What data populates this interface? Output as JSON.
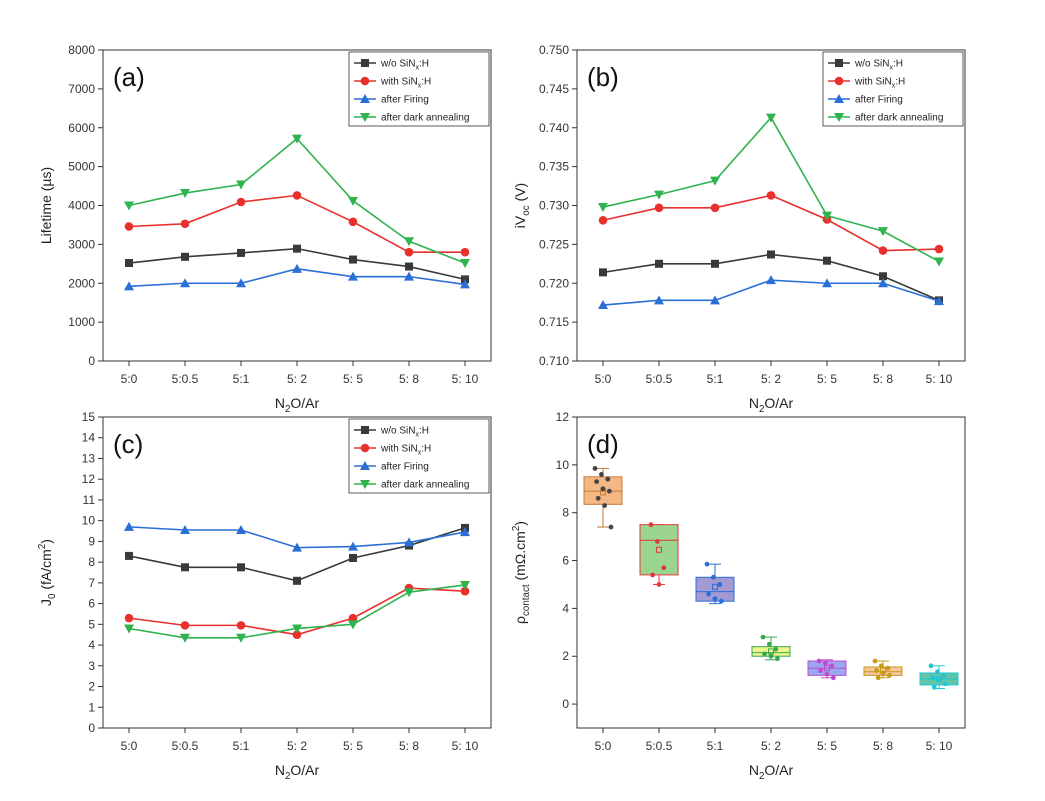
{
  "legend_items": [
    {
      "text": "w/o SiN",
      "sub": "x",
      "tail": ":H",
      "color": "#3a3a3a",
      "marker": "square"
    },
    {
      "text": "with SiN",
      "sub": "x",
      "tail": ":H",
      "color": "#e8302c",
      "marker": "circle"
    },
    {
      "text": "after Firing",
      "sub": "",
      "tail": "",
      "color": "#2a6fd6",
      "marker": "triangle-up"
    },
    {
      "text": "after dark annealing",
      "sub": "",
      "tail": "",
      "color": "#2fb34e",
      "marker": "triangle-down"
    }
  ],
  "chart_data": [
    {
      "panel_label": "(a)",
      "type": "line",
      "categories": [
        "5:0",
        "5:0.5",
        "5:1",
        "5: 2",
        "5: 5",
        "5: 8",
        "5: 10"
      ],
      "xlabel": {
        "main": "N",
        "sub": "2",
        "tail": "O/Ar"
      },
      "ylabel": {
        "main": "Lifetime (µs)",
        "sub": "",
        "tail": "",
        "sup": "",
        "end": ""
      },
      "ylim": [
        0,
        8000
      ],
      "yticks": [
        0,
        1000,
        2000,
        3000,
        4000,
        5000,
        6000,
        7000,
        8000
      ],
      "ytick_labels": [
        "0",
        "1000",
        "2000",
        "3000",
        "4000",
        "5000",
        "6000",
        "7000",
        "8000"
      ],
      "series": [
        {
          "values": [
            2520,
            2680,
            2780,
            2890,
            2610,
            2430,
            2100
          ],
          "color": "#3a3a3a",
          "marker": "square"
        },
        {
          "values": [
            3460,
            3530,
            4090,
            4260,
            3580,
            2800,
            2800
          ],
          "color": "#e8302c",
          "marker": "circle"
        },
        {
          "values": [
            1920,
            2000,
            2000,
            2370,
            2170,
            2170,
            1970
          ],
          "color": "#2a6fd6",
          "marker": "triangle-up"
        },
        {
          "values": [
            4000,
            4320,
            4540,
            5720,
            4120,
            3080,
            2520
          ],
          "color": "#2fb34e",
          "marker": "triangle-down"
        }
      ]
    },
    {
      "panel_label": "(b)",
      "type": "line",
      "categories": [
        "5:0",
        "5:0.5",
        "5:1",
        "5: 2",
        "5: 5",
        "5: 8",
        "5: 10"
      ],
      "xlabel": {
        "main": "N",
        "sub": "2",
        "tail": "O/Ar"
      },
      "ylabel": {
        "main": "iV",
        "sub": "oc",
        "tail": " (V)",
        "sup": "",
        "end": ""
      },
      "ylim": [
        0.71,
        0.75
      ],
      "yticks": [
        0.71,
        0.715,
        0.72,
        0.725,
        0.73,
        0.735,
        0.74,
        0.745,
        0.75
      ],
      "ytick_labels": [
        "0.710",
        "0.715",
        "0.720",
        "0.725",
        "0.730",
        "0.735",
        "0.740",
        "0.745",
        "0.750"
      ],
      "series": [
        {
          "values": [
            0.7214,
            0.7225,
            0.7225,
            0.7237,
            0.7229,
            0.7209,
            0.7178
          ],
          "color": "#3a3a3a",
          "marker": "square"
        },
        {
          "values": [
            0.7281,
            0.7297,
            0.7297,
            0.7313,
            0.7282,
            0.7242,
            0.7244
          ],
          "color": "#e8302c",
          "marker": "circle"
        },
        {
          "values": [
            0.7172,
            0.7178,
            0.7178,
            0.7204,
            0.72,
            0.72,
            0.7177
          ],
          "color": "#2a6fd6",
          "marker": "triangle-up"
        },
        {
          "values": [
            0.7298,
            0.7314,
            0.7332,
            0.7413,
            0.7287,
            0.7267,
            0.7228
          ],
          "color": "#2fb34e",
          "marker": "triangle-down"
        }
      ]
    },
    {
      "panel_label": "(c)",
      "type": "line",
      "categories": [
        "5:0",
        "5:0.5",
        "5:1",
        "5: 2",
        "5: 5",
        "5: 8",
        "5: 10"
      ],
      "xlabel": {
        "main": "N",
        "sub": "2",
        "tail": "O/Ar"
      },
      "ylabel": {
        "main": "J",
        "sub": "0",
        "tail": " (fA/cm",
        "sup": "2",
        "end": ")"
      },
      "ylim": [
        0,
        15
      ],
      "yticks": [
        0,
        1,
        2,
        3,
        4,
        5,
        6,
        7,
        8,
        9,
        10,
        11,
        12,
        13,
        14,
        15
      ],
      "ytick_labels": [
        "0",
        "1",
        "2",
        "3",
        "4",
        "5",
        "6",
        "7",
        "8",
        "9",
        "10",
        "11",
        "12",
        "13",
        "14",
        "15"
      ],
      "series": [
        {
          "values": [
            8.3,
            7.75,
            7.75,
            7.1,
            8.2,
            8.8,
            9.65
          ],
          "color": "#3a3a3a",
          "marker": "square"
        },
        {
          "values": [
            5.3,
            4.95,
            4.95,
            4.5,
            5.3,
            6.75,
            6.6
          ],
          "color": "#e8302c",
          "marker": "circle"
        },
        {
          "values": [
            9.7,
            9.55,
            9.55,
            8.7,
            8.75,
            8.95,
            9.45
          ],
          "color": "#2a6fd6",
          "marker": "triangle-up"
        },
        {
          "values": [
            4.8,
            4.35,
            4.35,
            4.8,
            5.0,
            6.55,
            6.9
          ],
          "color": "#2fb34e",
          "marker": "triangle-down"
        }
      ]
    },
    {
      "panel_label": "(d)",
      "type": "box",
      "categories": [
        "5:0",
        "5:0.5",
        "5:1",
        "5: 2",
        "5: 5",
        "5: 8",
        "5: 10"
      ],
      "xlabel": {
        "main": "N",
        "sub": "2",
        "tail": "O/Ar"
      },
      "ylabel": {
        "main": "ρ",
        "sub": "contact",
        "tail": " (mΩ.cm",
        "sup": "2",
        "end": ")"
      },
      "ylim": [
        -1,
        12
      ],
      "yticks": [
        0,
        2,
        4,
        6,
        8,
        10,
        12
      ],
      "ytick_labels": [
        "0",
        "2",
        "4",
        "6",
        "8",
        "10",
        "12"
      ],
      "boxes": [
        {
          "q1": 8.35,
          "median": 8.9,
          "q3": 9.5,
          "mean": 8.85,
          "whisker_low": 7.4,
          "whisker_high": 9.85,
          "points": [
            9.85,
            9.6,
            9.4,
            9.3,
            9.0,
            8.9,
            8.6,
            8.3,
            7.4
          ],
          "fill": "#f5b783",
          "stroke": "#c77b36",
          "point_color": "#444444"
        },
        {
          "q1": 5.4,
          "median": 6.85,
          "q3": 7.5,
          "mean": 6.45,
          "whisker_low": 5.0,
          "whisker_high": 7.5,
          "points": [
            7.5,
            6.8,
            5.7,
            5.4,
            5.0
          ],
          "fill": "#9bd58f",
          "stroke": "#e0393a",
          "point_color": "#e0393a"
        },
        {
          "q1": 4.3,
          "median": 4.7,
          "q3": 5.3,
          "mean": 4.9,
          "whisker_low": 4.2,
          "whisker_high": 5.85,
          "points": [
            5.85,
            5.3,
            5.0,
            4.6,
            4.4,
            4.3
          ],
          "fill": "#a399d3",
          "stroke": "#2a6fd6",
          "point_color": "#2a6fd6"
        },
        {
          "q1": 2.0,
          "median": 2.15,
          "q3": 2.4,
          "mean": 2.2,
          "whisker_low": 1.85,
          "whisker_high": 2.8,
          "points": [
            2.8,
            2.5,
            2.3,
            2.1,
            2.0,
            1.9
          ],
          "fill": "#eef38c",
          "stroke": "#38a84f",
          "point_color": "#38a84f"
        },
        {
          "q1": 1.2,
          "median": 1.5,
          "q3": 1.8,
          "mean": 1.5,
          "whisker_low": 1.1,
          "whisker_high": 1.85,
          "points": [
            1.8,
            1.7,
            1.6,
            1.4,
            1.25,
            1.1
          ],
          "fill": "#9aa8ef",
          "stroke": "#c04bd0",
          "point_color": "#c04bd0"
        },
        {
          "q1": 1.2,
          "median": 1.35,
          "q3": 1.55,
          "mean": 1.4,
          "whisker_low": 1.1,
          "whisker_high": 1.8,
          "points": [
            1.8,
            1.6,
            1.5,
            1.4,
            1.3,
            1.2,
            1.1
          ],
          "fill": "#f7c59f",
          "stroke": "#c79a18",
          "point_color": "#c79a18"
        },
        {
          "q1": 0.8,
          "median": 1.05,
          "q3": 1.3,
          "mean": 1.05,
          "whisker_low": 0.65,
          "whisker_high": 1.6,
          "points": [
            1.6,
            1.35,
            1.2,
            1.1,
            1.0,
            0.85,
            0.7
          ],
          "fill": "#62c6a6",
          "stroke": "#1fc6d3",
          "point_color": "#1fc6d3"
        }
      ]
    }
  ]
}
